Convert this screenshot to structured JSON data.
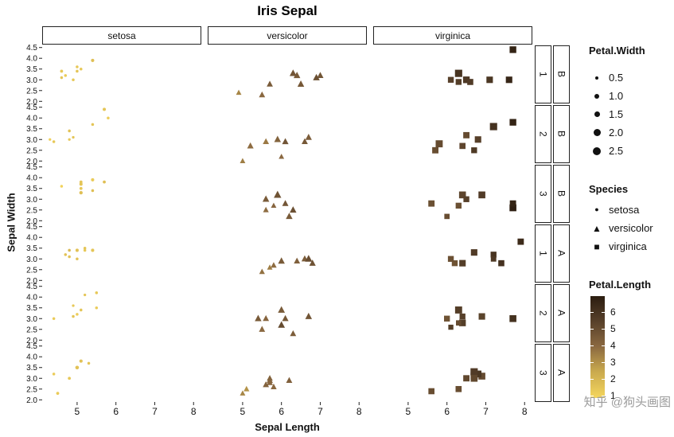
{
  "watermark": {
    "text": "知乎 @狗头画图"
  },
  "chart_data": {
    "type": "scatter",
    "title": "Iris Sepal",
    "xlabel": "Sepal Length",
    "ylabel": "Sepal Width",
    "xlim": [
      4.1,
      8.2
    ],
    "ylim": [
      1.9,
      4.6
    ],
    "x_ticks": [
      5,
      6,
      7,
      8
    ],
    "x_tick_labels": [
      "5",
      "6",
      "7",
      "8"
    ],
    "y_ticks": [
      4.5,
      4.0,
      3.5,
      3.0,
      2.5,
      2.0
    ],
    "y_tick_labels": [
      "4.5",
      "4.0",
      "3.5",
      "3.0",
      "2.5",
      "2.0"
    ],
    "grid": false,
    "col_facets": [
      "setosa",
      "versicolor",
      "virginica"
    ],
    "row_facets": [
      {
        "num": "1",
        "grp": "B"
      },
      {
        "num": "2",
        "grp": "B"
      },
      {
        "num": "3",
        "grp": "B"
      },
      {
        "num": "1",
        "grp": "A"
      },
      {
        "num": "2",
        "grp": "A"
      },
      {
        "num": "3",
        "grp": "A"
      }
    ],
    "size_legend": {
      "title": "Petal.Width",
      "labels": [
        "0.5",
        "1.0",
        "1.5",
        "2.0",
        "2.5"
      ],
      "values": [
        0.5,
        1.0,
        1.5,
        2.0,
        2.5
      ]
    },
    "shape_legend": {
      "title": "Species",
      "items": [
        {
          "label": "setosa",
          "shape": "circle"
        },
        {
          "label": "versicolor",
          "shape": "triangle"
        },
        {
          "label": "virginica",
          "shape": "square"
        }
      ]
    },
    "color_legend": {
      "title": "Petal.Length",
      "range": [
        0.9,
        7.0
      ],
      "tick_values": [
        6,
        5,
        4,
        3,
        2,
        1
      ],
      "tick_labels": [
        "6",
        "5",
        "4",
        "3",
        "2",
        "1"
      ],
      "stops": [
        [
          1.0,
          "#F2D35C"
        ],
        [
          2.5,
          "#C9A94E"
        ],
        [
          4.0,
          "#8A6840"
        ],
        [
          5.5,
          "#57402A"
        ],
        [
          7.0,
          "#2B1D10"
        ]
      ]
    },
    "point_format": [
      "sepal_length",
      "sepal_width",
      "petal_length",
      "petal_width"
    ],
    "points": {
      "setosa": [
        [
          [
            5.1,
            3.5,
            1.4,
            0.2
          ],
          [
            4.9,
            3.0,
            1.4,
            0.2
          ],
          [
            4.7,
            3.2,
            1.3,
            0.2
          ],
          [
            4.6,
            3.1,
            1.5,
            0.2
          ],
          [
            5.0,
            3.6,
            1.4,
            0.2
          ],
          [
            5.4,
            3.9,
            1.7,
            0.4
          ],
          [
            4.6,
            3.4,
            1.4,
            0.3
          ],
          [
            5.0,
            3.4,
            1.5,
            0.2
          ]
        ],
        [
          [
            4.4,
            2.9,
            1.4,
            0.2
          ],
          [
            4.9,
            3.1,
            1.5,
            0.1
          ],
          [
            5.4,
            3.7,
            1.5,
            0.2
          ],
          [
            4.8,
            3.4,
            1.6,
            0.2
          ],
          [
            4.8,
            3.0,
            1.4,
            0.1
          ],
          [
            4.3,
            3.0,
            1.1,
            0.1
          ],
          [
            5.8,
            4.0,
            1.2,
            0.2
          ],
          [
            5.7,
            4.4,
            1.5,
            0.4
          ]
        ],
        [
          [
            5.4,
            3.9,
            1.3,
            0.4
          ],
          [
            5.1,
            3.5,
            1.4,
            0.3
          ],
          [
            5.7,
            3.8,
            1.7,
            0.3
          ],
          [
            5.1,
            3.8,
            1.5,
            0.3
          ],
          [
            5.4,
            3.4,
            1.7,
            0.2
          ],
          [
            5.1,
            3.7,
            1.5,
            0.4
          ],
          [
            4.6,
            3.6,
            1.0,
            0.2
          ],
          [
            5.1,
            3.3,
            1.7,
            0.5
          ]
        ],
        [
          [
            4.8,
            3.4,
            1.9,
            0.2
          ],
          [
            5.0,
            3.0,
            1.6,
            0.2
          ],
          [
            5.0,
            3.4,
            1.6,
            0.4
          ],
          [
            5.2,
            3.5,
            1.5,
            0.2
          ],
          [
            5.2,
            3.4,
            1.4,
            0.2
          ],
          [
            4.7,
            3.2,
            1.6,
            0.2
          ],
          [
            4.8,
            3.1,
            1.6,
            0.2
          ],
          [
            5.4,
            3.4,
            1.5,
            0.4
          ]
        ],
        [
          [
            5.2,
            4.1,
            1.5,
            0.1
          ],
          [
            5.5,
            4.2,
            1.4,
            0.2
          ],
          [
            4.9,
            3.1,
            1.5,
            0.2
          ],
          [
            5.0,
            3.2,
            1.2,
            0.2
          ],
          [
            5.5,
            3.5,
            1.3,
            0.2
          ],
          [
            4.9,
            3.6,
            1.4,
            0.1
          ],
          [
            4.4,
            3.0,
            1.3,
            0.2
          ],
          [
            5.1,
            3.4,
            1.5,
            0.2
          ]
        ],
        [
          [
            5.0,
            3.5,
            1.3,
            0.3
          ],
          [
            4.5,
            2.3,
            1.3,
            0.3
          ],
          [
            4.4,
            3.2,
            1.3,
            0.2
          ],
          [
            5.0,
            3.5,
            1.6,
            0.6
          ],
          [
            5.1,
            3.8,
            1.9,
            0.4
          ],
          [
            4.8,
            3.0,
            1.4,
            0.3
          ],
          [
            5.1,
            3.8,
            1.6,
            0.2
          ],
          [
            5.3,
            3.7,
            1.5,
            0.2
          ]
        ]
      ],
      "versicolor": [
        [
          [
            7.0,
            3.2,
            4.7,
            1.4
          ],
          [
            6.4,
            3.2,
            4.5,
            1.5
          ],
          [
            6.9,
            3.1,
            4.9,
            1.5
          ],
          [
            5.5,
            2.3,
            4.0,
            1.3
          ],
          [
            6.5,
            2.8,
            4.6,
            1.5
          ],
          [
            5.7,
            2.8,
            4.5,
            1.3
          ],
          [
            6.3,
            3.3,
            4.7,
            1.6
          ],
          [
            4.9,
            2.4,
            3.3,
            1.0
          ]
        ],
        [
          [
            6.6,
            2.9,
            4.6,
            1.3
          ],
          [
            5.2,
            2.7,
            3.9,
            1.4
          ],
          [
            5.0,
            2.0,
            3.5,
            1.0
          ],
          [
            5.9,
            3.0,
            4.2,
            1.5
          ],
          [
            6.0,
            2.2,
            4.0,
            1.0
          ],
          [
            6.1,
            2.9,
            4.7,
            1.4
          ],
          [
            5.6,
            2.9,
            3.6,
            1.3
          ],
          [
            6.7,
            3.1,
            4.4,
            1.4
          ]
        ],
        [
          [
            5.6,
            3.0,
            4.5,
            1.5
          ],
          [
            5.8,
            2.7,
            4.1,
            1.0
          ],
          [
            6.2,
            2.2,
            4.5,
            1.5
          ],
          [
            5.6,
            2.5,
            3.9,
            1.1
          ],
          [
            5.9,
            3.2,
            4.8,
            1.8
          ],
          [
            6.1,
            2.8,
            4.0,
            1.3
          ],
          [
            6.3,
            2.5,
            4.9,
            1.5
          ],
          [
            6.1,
            2.8,
            4.7,
            1.2
          ]
        ],
        [
          [
            6.4,
            2.9,
            4.3,
            1.3
          ],
          [
            6.6,
            3.0,
            4.4,
            1.4
          ],
          [
            6.8,
            2.8,
            4.8,
            1.4
          ],
          [
            6.7,
            3.0,
            5.0,
            1.7
          ],
          [
            6.0,
            2.9,
            4.5,
            1.5
          ],
          [
            5.7,
            2.6,
            3.5,
            1.0
          ],
          [
            5.5,
            2.4,
            3.8,
            1.1
          ],
          [
            5.8,
            2.7,
            3.9,
            1.2
          ]
        ],
        [
          [
            6.0,
            2.7,
            5.1,
            1.6
          ],
          [
            5.4,
            3.0,
            4.5,
            1.5
          ],
          [
            6.0,
            3.4,
            4.5,
            1.6
          ],
          [
            6.7,
            3.1,
            4.7,
            1.5
          ],
          [
            6.3,
            2.3,
            4.4,
            1.3
          ],
          [
            5.6,
            3.0,
            4.1,
            1.3
          ],
          [
            5.5,
            2.5,
            4.0,
            1.3
          ],
          [
            6.1,
            3.0,
            4.6,
            1.4
          ]
        ],
        [
          [
            5.8,
            2.6,
            4.0,
            1.2
          ],
          [
            5.0,
            2.3,
            3.3,
            1.0
          ],
          [
            5.6,
            2.7,
            4.2,
            1.3
          ],
          [
            5.7,
            3.0,
            4.2,
            1.2
          ],
          [
            5.7,
            2.9,
            4.2,
            1.3
          ],
          [
            6.2,
            2.9,
            4.3,
            1.3
          ],
          [
            5.1,
            2.5,
            3.0,
            1.1
          ],
          [
            5.7,
            2.8,
            4.1,
            1.3
          ]
        ]
      ],
      "virginica": [
        [
          [
            6.3,
            3.3,
            6.0,
            2.5
          ],
          [
            6.1,
            3.0,
            5.5,
            1.8
          ],
          [
            7.1,
            3.0,
            5.9,
            2.1
          ],
          [
            6.3,
            2.9,
            5.6,
            1.8
          ],
          [
            6.5,
            3.0,
            5.8,
            2.2
          ],
          [
            7.6,
            3.0,
            6.6,
            2.1
          ],
          [
            6.6,
            2.9,
            5.7,
            1.9
          ],
          [
            7.7,
            4.4,
            6.7,
            2.2
          ]
        ],
        [
          [
            6.7,
            2.5,
            5.8,
            1.8
          ],
          [
            7.2,
            3.6,
            6.1,
            2.5
          ],
          [
            6.5,
            3.2,
            5.1,
            2.0
          ],
          [
            6.4,
            2.7,
            5.3,
            1.9
          ],
          [
            6.8,
            3.0,
            5.5,
            2.1
          ],
          [
            5.7,
            2.5,
            5.0,
            2.0
          ],
          [
            5.8,
            2.8,
            5.1,
            2.4
          ],
          [
            7.7,
            3.8,
            6.7,
            2.2
          ]
        ],
        [
          [
            6.4,
            3.2,
            5.3,
            2.3
          ],
          [
            6.5,
            3.0,
            5.5,
            1.8
          ],
          [
            7.7,
            2.6,
            6.9,
            2.3
          ],
          [
            6.0,
            2.2,
            5.0,
            1.5
          ],
          [
            6.9,
            3.2,
            5.7,
            2.3
          ],
          [
            5.6,
            2.8,
            4.9,
            2.0
          ],
          [
            7.7,
            2.8,
            6.7,
            2.0
          ],
          [
            6.3,
            2.7,
            4.9,
            1.8
          ]
        ],
        [
          [
            6.7,
            3.3,
            5.7,
            2.1
          ],
          [
            7.2,
            3.2,
            6.0,
            1.8
          ],
          [
            6.2,
            2.8,
            4.8,
            1.8
          ],
          [
            6.1,
            3.0,
            4.9,
            1.8
          ],
          [
            6.4,
            2.8,
            5.6,
            2.1
          ],
          [
            7.2,
            3.0,
            5.8,
            1.6
          ],
          [
            7.4,
            2.8,
            6.1,
            1.9
          ],
          [
            7.9,
            3.8,
            6.4,
            2.0
          ]
        ],
        [
          [
            6.4,
            2.8,
            5.6,
            2.2
          ],
          [
            6.3,
            2.8,
            5.1,
            1.5
          ],
          [
            6.1,
            2.6,
            5.6,
            1.4
          ],
          [
            7.7,
            3.0,
            6.1,
            2.3
          ],
          [
            6.3,
            3.4,
            5.6,
            2.4
          ],
          [
            6.4,
            3.1,
            5.5,
            1.8
          ],
          [
            6.0,
            3.0,
            4.8,
            1.8
          ],
          [
            6.9,
            3.1,
            5.4,
            2.1
          ]
        ],
        [
          [
            6.7,
            3.1,
            5.6,
            2.4
          ],
          [
            6.9,
            3.1,
            5.1,
            2.3
          ],
          [
            5.6,
            2.4,
            5.0,
            1.9
          ],
          [
            6.8,
            3.2,
            5.9,
            2.3
          ],
          [
            6.7,
            3.3,
            5.7,
            2.5
          ],
          [
            6.7,
            3.0,
            5.2,
            2.3
          ],
          [
            6.3,
            2.5,
            5.0,
            1.9
          ],
          [
            6.5,
            3.0,
            5.2,
            2.0
          ]
        ]
      ]
    }
  }
}
